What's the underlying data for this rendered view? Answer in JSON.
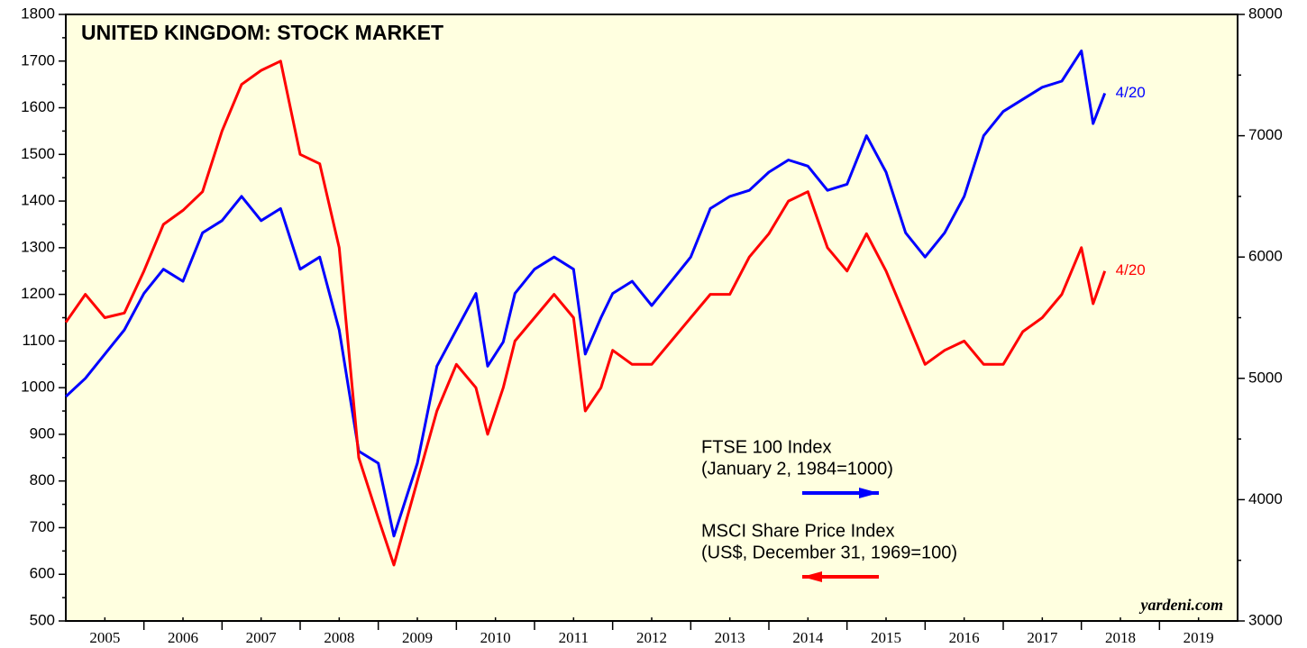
{
  "chart_data": {
    "type": "line",
    "title": "UNITED KINGDOM: STOCK MARKET",
    "x": [
      2005.0,
      2005.25,
      2005.5,
      2005.75,
      2006.0,
      2006.25,
      2006.5,
      2006.75,
      2007.0,
      2007.25,
      2007.5,
      2007.75,
      2008.0,
      2008.25,
      2008.5,
      2008.75,
      2009.0,
      2009.2,
      2009.5,
      2009.75,
      2010.0,
      2010.25,
      2010.4,
      2010.6,
      2010.75,
      2011.0,
      2011.25,
      2011.5,
      2011.65,
      2011.85,
      2012.0,
      2012.25,
      2012.5,
      2012.75,
      2013.0,
      2013.25,
      2013.5,
      2013.75,
      2014.0,
      2014.25,
      2014.5,
      2014.75,
      2015.0,
      2015.25,
      2015.5,
      2015.75,
      2016.0,
      2016.25,
      2016.5,
      2016.75,
      2017.0,
      2017.25,
      2017.5,
      2017.75,
      2018.0,
      2018.15,
      2018.3
    ],
    "series": [
      {
        "name": "FTSE 100 Index",
        "subtitle": "(January 2, 1984=1000)",
        "end_label": "4/20",
        "color": "#0000ff",
        "axis": "y2",
        "values": [
          4850,
          5000,
          5200,
          5400,
          5700,
          5900,
          5800,
          6200,
          6300,
          6500,
          6300,
          6400,
          5900,
          6000,
          5400,
          4400,
          4300,
          3700,
          4300,
          5100,
          5400,
          5700,
          5100,
          5300,
          5700,
          5900,
          6000,
          5900,
          5200,
          5500,
          5700,
          5800,
          5600,
          5800,
          6000,
          6400,
          6500,
          6550,
          6700,
          6800,
          6750,
          6550,
          6600,
          7000,
          6700,
          6200,
          6000,
          6200,
          6500,
          7000,
          7200,
          7300,
          7400,
          7450,
          7700,
          7100,
          7350
        ]
      },
      {
        "name": "MSCI Share Price Index",
        "subtitle": "(US$, December 31, 1969=100)",
        "end_label": "4/20",
        "color": "#ff0000",
        "axis": "y",
        "values": [
          1140,
          1200,
          1150,
          1160,
          1250,
          1350,
          1380,
          1420,
          1550,
          1650,
          1680,
          1700,
          1500,
          1480,
          1300,
          850,
          720,
          620,
          800,
          950,
          1050,
          1000,
          900,
          1000,
          1100,
          1150,
          1200,
          1150,
          950,
          1000,
          1080,
          1050,
          1050,
          1100,
          1150,
          1200,
          1200,
          1280,
          1330,
          1400,
          1420,
          1300,
          1250,
          1330,
          1250,
          1150,
          1050,
          1080,
          1100,
          1050,
          1050,
          1120,
          1150,
          1200,
          1300,
          1180,
          1250
        ]
      }
    ],
    "xlim": [
      2005,
      2020
    ],
    "xticks": [
      {
        "value": 2005.5,
        "label": "2005"
      },
      {
        "value": 2006.5,
        "label": "2006"
      },
      {
        "value": 2007.5,
        "label": "2007"
      },
      {
        "value": 2008.5,
        "label": "2008"
      },
      {
        "value": 2009.5,
        "label": "2009"
      },
      {
        "value": 2010.5,
        "label": "2010"
      },
      {
        "value": 2011.5,
        "label": "2011"
      },
      {
        "value": 2012.5,
        "label": "2012"
      },
      {
        "value": 2013.5,
        "label": "2013"
      },
      {
        "value": 2014.5,
        "label": "2014"
      },
      {
        "value": 2015.5,
        "label": "2015"
      },
      {
        "value": 2016.5,
        "label": "2016"
      },
      {
        "value": 2017.5,
        "label": "2017"
      },
      {
        "value": 2018.5,
        "label": "2018"
      },
      {
        "value": 2019.5,
        "label": "2019"
      }
    ],
    "ylim": [
      500,
      1800
    ],
    "yticks": [
      500,
      600,
      700,
      800,
      900,
      1000,
      1100,
      1200,
      1300,
      1400,
      1500,
      1600,
      1700,
      1800
    ],
    "y2lim": [
      3000,
      8000
    ],
    "y2ticks": [
      3000,
      4000,
      5000,
      6000,
      7000,
      8000
    ],
    "source": "yardeni.com",
    "background": "#ffffe0"
  }
}
